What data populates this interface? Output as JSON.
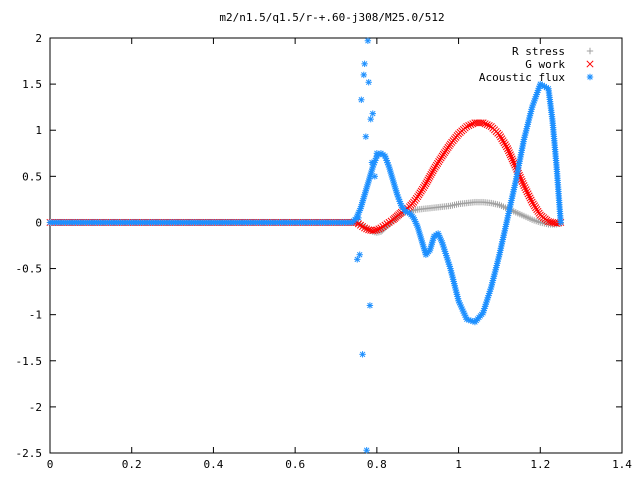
{
  "chart_data": {
    "type": "scatter",
    "title": "m2/n1.5/q1.5/r-+.60-j308/M25.0/512",
    "xlabel": "",
    "ylabel": "",
    "xlim": [
      0,
      1.4
    ],
    "ylim": [
      -2.5,
      2
    ],
    "x_ticks": [
      "0",
      "0.2",
      "0.4",
      "0.6",
      "0.8",
      "1",
      "1.2",
      "1.4"
    ],
    "y_ticks": [
      "2",
      "1.5",
      "1",
      "0.5",
      "0",
      "-0.5",
      "-1",
      "-1.5",
      "-2",
      "-2.5"
    ],
    "grid": false,
    "legend_position": "top-right",
    "series": [
      {
        "name": "R stress",
        "marker": "plus",
        "color": "#a0a0a0",
        "x": [
          0.0,
          0.74,
          0.75,
          0.76,
          0.77,
          0.78,
          0.79,
          0.8,
          0.81,
          0.82,
          0.83,
          0.84,
          0.85,
          0.86,
          0.87,
          0.88,
          0.89,
          0.9,
          0.92,
          0.94,
          0.96,
          0.98,
          1.0,
          1.02,
          1.04,
          1.06,
          1.08,
          1.1,
          1.12,
          1.14,
          1.16,
          1.18,
          1.2,
          1.22,
          1.24,
          1.25
        ],
        "y": [
          0.0,
          0.0,
          0.0,
          -0.02,
          -0.05,
          -0.08,
          -0.1,
          -0.11,
          -0.1,
          -0.06,
          -0.02,
          0.02,
          0.06,
          0.09,
          0.11,
          0.12,
          0.13,
          0.14,
          0.15,
          0.16,
          0.17,
          0.18,
          0.2,
          0.21,
          0.22,
          0.22,
          0.21,
          0.19,
          0.15,
          0.11,
          0.07,
          0.03,
          0.0,
          -0.02,
          -0.02,
          -0.01
        ]
      },
      {
        "name": "G work",
        "marker": "cross",
        "color": "#ff0000",
        "x": [
          0.0,
          0.74,
          0.75,
          0.76,
          0.77,
          0.78,
          0.79,
          0.8,
          0.81,
          0.82,
          0.83,
          0.84,
          0.85,
          0.86,
          0.87,
          0.88,
          0.89,
          0.9,
          0.92,
          0.94,
          0.96,
          0.98,
          1.0,
          1.02,
          1.04,
          1.06,
          1.08,
          1.1,
          1.12,
          1.14,
          1.16,
          1.18,
          1.2,
          1.22,
          1.24,
          1.25
        ],
        "y": [
          0.0,
          0.0,
          0.0,
          -0.03,
          -0.06,
          -0.08,
          -0.09,
          -0.08,
          -0.06,
          -0.03,
          0.0,
          0.03,
          0.07,
          0.11,
          0.14,
          0.17,
          0.22,
          0.28,
          0.42,
          0.58,
          0.72,
          0.85,
          0.96,
          1.04,
          1.08,
          1.08,
          1.04,
          0.95,
          0.8,
          0.6,
          0.4,
          0.22,
          0.08,
          0.01,
          -0.01,
          0.0
        ]
      },
      {
        "name": "Acoustic flux",
        "marker": "star",
        "color": "#1e90ff",
        "x": [
          0.0,
          0.74,
          0.75,
          0.76,
          0.77,
          0.78,
          0.79,
          0.8,
          0.81,
          0.82,
          0.83,
          0.84,
          0.85,
          0.86,
          0.87,
          0.88,
          0.89,
          0.9,
          0.91,
          0.92,
          0.93,
          0.94,
          0.95,
          0.96,
          0.98,
          1.0,
          1.02,
          1.04,
          1.06,
          1.08,
          1.1,
          1.12,
          1.14,
          1.16,
          1.18,
          1.2,
          1.22,
          1.23,
          1.24,
          1.25
        ],
        "y": [
          0.0,
          0.0,
          0.05,
          0.15,
          0.3,
          0.45,
          0.6,
          0.72,
          0.75,
          0.72,
          0.6,
          0.45,
          0.3,
          0.18,
          0.12,
          0.1,
          0.05,
          -0.05,
          -0.2,
          -0.35,
          -0.3,
          -0.15,
          -0.12,
          -0.22,
          -0.5,
          -0.85,
          -1.05,
          -1.08,
          -0.98,
          -0.7,
          -0.35,
          0.05,
          0.45,
          0.9,
          1.25,
          1.5,
          1.45,
          1.1,
          0.6,
          0.0
        ]
      },
      {
        "name": "",
        "marker": "star",
        "color": "#1e90ff",
        "x": [
          0.752,
          0.755,
          0.758,
          0.762,
          0.765,
          0.768,
          0.77,
          0.773,
          0.775,
          0.778,
          0.78,
          0.783,
          0.785,
          0.788,
          0.79,
          0.795,
          0.8
        ],
        "y": [
          -0.4,
          0.05,
          -0.35,
          1.33,
          -1.43,
          1.6,
          1.72,
          0.93,
          -2.47,
          1.97,
          1.52,
          -0.9,
          1.12,
          0.65,
          1.18,
          0.5,
          0.75
        ]
      }
    ]
  }
}
